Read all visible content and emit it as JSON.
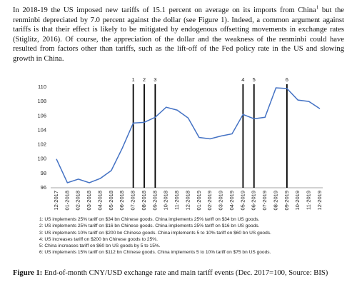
{
  "paragraph": {
    "part1": "In 2018-19 the US imposed new tariffs of 15.1 percent on average on its imports from China",
    "footnote_mark": "1",
    "part2": " but the renminbi depreciated by 7.0 percent against the dollar (see Figure 1).  Indeed, a common argument against tariffs is that their effect is likely to be mitigated by endogenous offsetting movements in exchange rates (Stiglitz, 2016). Of course, the appreciation of the dollar and the weakness of the renminbi could have resulted from factors other than tariffs, such as the lift-off of the Fed policy rate in the US and slowing growth in China."
  },
  "chart_data": {
    "type": "line",
    "categories": [
      "12-2017",
      "01-2018",
      "02-2018",
      "03-2018",
      "04-2018",
      "05-2018",
      "06-2018",
      "07-2018",
      "08-2018",
      "09-2018",
      "10-2018",
      "11-2018",
      "12-2018",
      "01-2019",
      "02-2019",
      "03-2019",
      "04-2019",
      "05-2019",
      "06-2019",
      "07-2019",
      "08-2019",
      "09-2019",
      "10-2019",
      "11-2019",
      "12-2019"
    ],
    "series": [
      {
        "color": "#4472c4",
        "values": [
          100,
          96.7,
          97.2,
          96.7,
          97.3,
          98.4,
          101.5,
          105.0,
          105.1,
          105.8,
          107.2,
          106.8,
          105.7,
          103.0,
          102.8,
          103.2,
          103.5,
          106.2,
          105.6,
          105.8,
          109.9,
          109.8,
          108.2,
          108.0,
          107.0
        ]
      }
    ],
    "ylim": [
      96,
      110
    ],
    "yticks": [
      96,
      98,
      100,
      102,
      104,
      106,
      108,
      110
    ],
    "events": [
      {
        "label": "1",
        "x": "07-2018"
      },
      {
        "label": "2",
        "x": "08-2018"
      },
      {
        "label": "3",
        "x": "09-2018"
      },
      {
        "label": "4",
        "x": "05-2019"
      },
      {
        "label": "5",
        "x": "06-2019"
      },
      {
        "label": "6",
        "x": "09-2019"
      }
    ],
    "notes": [
      "1: US implements 25% tariff on $34 bn Chinese goods. China implements 25% tariff on $34 bn US goods.",
      "2: US implements 25% tariff on $16 bn Chinese goods. China implements 25% tariff on $16 bn US goods.",
      "3: US implements 10% tariff on $200 bn Chinese goods. China implements 5 to 10% tariff on $60 bn US goods.",
      "4: US increases tariff on $200 bn Chinese goods to 25%.",
      "5: China increases tariff on $60 bn US goods by 5 to 15%.",
      "6: US implements 15% tariff on $112 bn Chinese goods. China implements 5 to 10% tariff on $75 bn US goods."
    ]
  },
  "caption": {
    "label": "Figure 1:",
    "text": " End-of-month CNY/USD exchange rate and main tariff events (Dec. 2017=100, Source: BIS)"
  }
}
